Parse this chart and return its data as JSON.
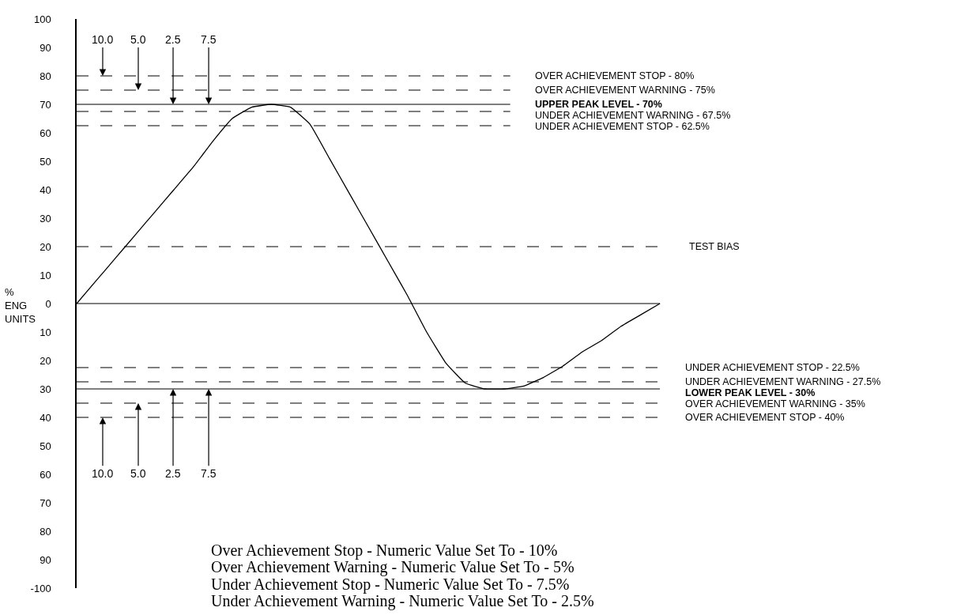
{
  "chart_data": {
    "type": "line",
    "ylabel": "%\nENG\nUNITS",
    "categories": [
      null,
      null,
      null,
      null,
      null,
      null,
      null,
      null,
      null,
      null,
      null,
      null,
      null,
      null,
      null,
      null,
      null,
      null,
      null,
      null,
      null,
      null,
      null,
      null,
      null,
      null,
      null,
      null,
      null,
      null,
      null
    ],
    "series": [
      {
        "color": "#000000",
        "values": [
          0,
          8,
          16,
          24,
          32,
          40,
          48,
          57,
          65,
          69,
          70,
          69,
          63,
          51,
          39,
          27,
          15,
          3,
          -10,
          -21,
          -28,
          -30,
          -30,
          -29,
          -26,
          -22,
          -17,
          -13,
          -8,
          -4,
          0
        ]
      }
    ],
    "ylim": [
      -100,
      100
    ],
    "yticks": [
      100,
      90,
      80,
      70,
      60,
      50,
      40,
      30,
      20,
      10,
      0,
      {
        "value": -10,
        "label": "10"
      },
      {
        "value": -20,
        "label": "20"
      },
      {
        "value": -30,
        "label": "30"
      },
      {
        "value": -40,
        "label": "40"
      },
      {
        "value": -50,
        "label": "50"
      },
      {
        "value": -60,
        "label": "60"
      },
      {
        "value": -70,
        "label": "70"
      },
      {
        "value": -80,
        "label": "80"
      },
      {
        "value": -90,
        "label": "90"
      },
      {
        "value": -100,
        "label": "-100"
      }
    ],
    "legend": false,
    "marker": "none",
    "line_style": "solid",
    "tick_labels": "y",
    "ref_lines": [
      {
        "axis": "y",
        "value": 80,
        "label": "OVER ACHIEVEMENT STOP - 80%",
        "line_style": "dashed",
        "color": "#000000"
      },
      {
        "axis": "y",
        "value": 75,
        "label": "OVER ACHIEVEMENT WARNING - 75%",
        "line_style": "dashed",
        "color": "#000000"
      },
      {
        "axis": "y",
        "value": 70,
        "label": "UPPER PEAK LEVEL - 70%",
        "line_style": "solid",
        "color": "#000000"
      },
      {
        "axis": "y",
        "value": 67.5,
        "label": "UNDER ACHIEVEMENT WARNING - 67.5%",
        "line_style": "dashed",
        "color": "#000000"
      },
      {
        "axis": "y",
        "value": 62.5,
        "label": "UNDER ACHIEVEMENT STOP - 62.5%",
        "line_style": "dashed",
        "color": "#000000"
      },
      {
        "axis": "y",
        "value": 20,
        "label": "TEST BIAS",
        "line_style": "dashed",
        "color": "#000000"
      },
      {
        "axis": "y",
        "value": 0,
        "line_style": "solid",
        "color": "#000000"
      },
      {
        "axis": "y",
        "value": -22.5,
        "label": "UNDER ACHIEVEMENT STOP - 22.5%",
        "line_style": "dashed",
        "color": "#000000"
      },
      {
        "axis": "y",
        "value": -27.5,
        "label": "UNDER ACHIEVEMENT WARNING - 27.5%",
        "line_style": "dashed",
        "color": "#000000"
      },
      {
        "axis": "y",
        "value": -30,
        "label": "LOWER PEAK LEVEL - 30%",
        "line_style": "solid",
        "color": "#000000"
      },
      {
        "axis": "y",
        "value": -35,
        "label": "OVER ACHIEVEMENT WARNING - 35%",
        "line_style": "dashed",
        "color": "#000000"
      },
      {
        "axis": "y",
        "value": -40,
        "label": "OVER ACHIEVEMENT STOP - 40%",
        "line_style": "dashed",
        "color": "#000000"
      }
    ],
    "annotations": [
      {
        "text": "10.0",
        "y": 80
      },
      {
        "text": "5.0",
        "y": 75
      },
      {
        "text": "2.5",
        "y": 70
      },
      {
        "text": "7.5",
        "y": 70
      },
      {
        "text": "10.0",
        "y": -40
      },
      {
        "text": "5.0",
        "y": -35
      },
      {
        "text": "2.5",
        "y": -30
      },
      {
        "text": "7.5",
        "y": -30
      },
      "Over Achievement Stop - Numeric Value Set To - 10%",
      "Over Achievement Warning - Numeric Value Set To - 5%",
      "Under Achievement Stop - Numeric Value Set To - 7.5%",
      "Under Achievement Warning - Numeric Value Set To - 2.5%"
    ]
  }
}
